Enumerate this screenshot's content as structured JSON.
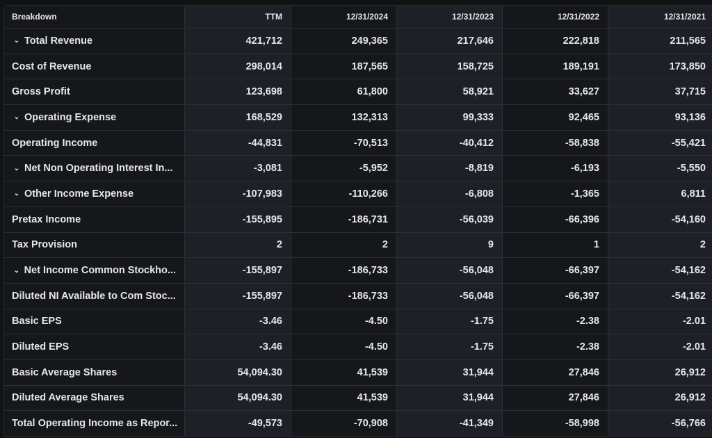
{
  "headers": [
    "Breakdown",
    "TTM",
    "12/31/2024",
    "12/31/2023",
    "12/31/2022",
    "12/31/2021"
  ],
  "rows": [
    {
      "label": "Total Revenue",
      "expand": true,
      "values": [
        "421,712",
        "249,365",
        "217,646",
        "222,818",
        "211,565"
      ]
    },
    {
      "label": "Cost of Revenue",
      "expand": false,
      "values": [
        "298,014",
        "187,565",
        "158,725",
        "189,191",
        "173,850"
      ]
    },
    {
      "label": "Gross Profit",
      "expand": false,
      "values": [
        "123,698",
        "61,800",
        "58,921",
        "33,627",
        "37,715"
      ]
    },
    {
      "label": "Operating Expense",
      "expand": true,
      "values": [
        "168,529",
        "132,313",
        "99,333",
        "92,465",
        "93,136"
      ]
    },
    {
      "label": "Operating Income",
      "expand": false,
      "values": [
        "-44,831",
        "-70,513",
        "-40,412",
        "-58,838",
        "-55,421"
      ]
    },
    {
      "label": "Net Non Operating Interest In...",
      "expand": true,
      "values": [
        "-3,081",
        "-5,952",
        "-8,819",
        "-6,193",
        "-5,550"
      ]
    },
    {
      "label": "Other Income Expense",
      "expand": true,
      "values": [
        "-107,983",
        "-110,266",
        "-6,808",
        "-1,365",
        "6,811"
      ]
    },
    {
      "label": "Pretax Income",
      "expand": false,
      "values": [
        "-155,895",
        "-186,731",
        "-56,039",
        "-66,396",
        "-54,160"
      ]
    },
    {
      "label": "Tax Provision",
      "expand": false,
      "values": [
        "2",
        "2",
        "9",
        "1",
        "2"
      ]
    },
    {
      "label": "Net Income Common Stockho...",
      "expand": true,
      "values": [
        "-155,897",
        "-186,733",
        "-56,048",
        "-66,397",
        "-54,162"
      ]
    },
    {
      "label": "Diluted NI Available to Com Stoc...",
      "expand": false,
      "values": [
        "-155,897",
        "-186,733",
        "-56,048",
        "-66,397",
        "-54,162"
      ]
    },
    {
      "label": "Basic EPS",
      "expand": false,
      "values": [
        "-3.46",
        "-4.50",
        "-1.75",
        "-2.38",
        "-2.01"
      ]
    },
    {
      "label": "Diluted EPS",
      "expand": false,
      "values": [
        "-3.46",
        "-4.50",
        "-1.75",
        "-2.38",
        "-2.01"
      ]
    },
    {
      "label": "Basic Average Shares",
      "expand": false,
      "values": [
        "54,094.30",
        "41,539",
        "31,944",
        "27,846",
        "26,912"
      ]
    },
    {
      "label": "Diluted Average Shares",
      "expand": false,
      "values": [
        "54,094.30",
        "41,539",
        "31,944",
        "27,846",
        "26,912"
      ]
    },
    {
      "label": "Total Operating Income as Repor...",
      "expand": false,
      "values": [
        "-49,573",
        "-70,908",
        "-41,349",
        "-58,998",
        "-56,766"
      ]
    }
  ]
}
